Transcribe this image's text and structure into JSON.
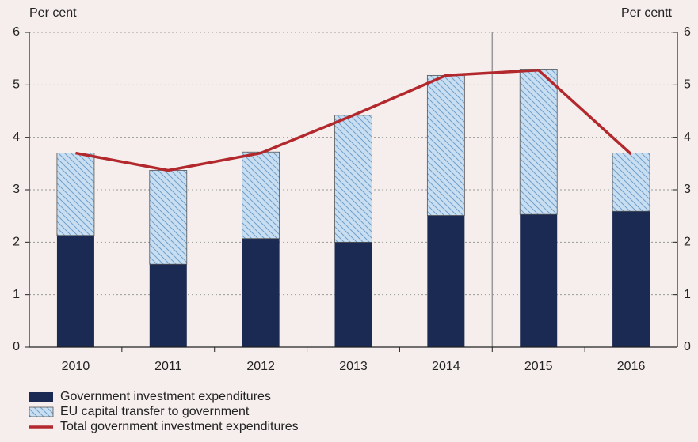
{
  "chart_data": {
    "type": "bar",
    "y_label": "Per cent",
    "y2_label": "Per centt",
    "categories": [
      "2010",
      "2011",
      "2012",
      "2013",
      "2014",
      "2015",
      "2016"
    ],
    "series": [
      {
        "name": "Government investment expenditures",
        "type": "bar",
        "color": "#1b2a52",
        "values": [
          2.13,
          1.58,
          2.07,
          2.0,
          2.51,
          2.53,
          2.59
        ]
      },
      {
        "name": "EU capital transfer to government",
        "type": "bar",
        "color": "#c9dff1",
        "hatch_color": "#6f9fcc",
        "values": [
          1.57,
          1.79,
          1.65,
          2.42,
          2.67,
          2.77,
          1.11
        ]
      },
      {
        "name": "Total government investment expenditures",
        "type": "line",
        "color": "#b3282d",
        "values": [
          3.7,
          3.37,
          3.7,
          4.42,
          5.18,
          5.28,
          3.68
        ]
      }
    ],
    "ylim": [
      0,
      6
    ],
    "yticks": [
      0,
      1,
      2,
      3,
      4,
      5,
      6
    ],
    "y2lim": [
      0,
      6
    ],
    "y2ticks": [
      0,
      1,
      2,
      3,
      4,
      5,
      6
    ],
    "grid": true,
    "legend": "bottom-left"
  }
}
